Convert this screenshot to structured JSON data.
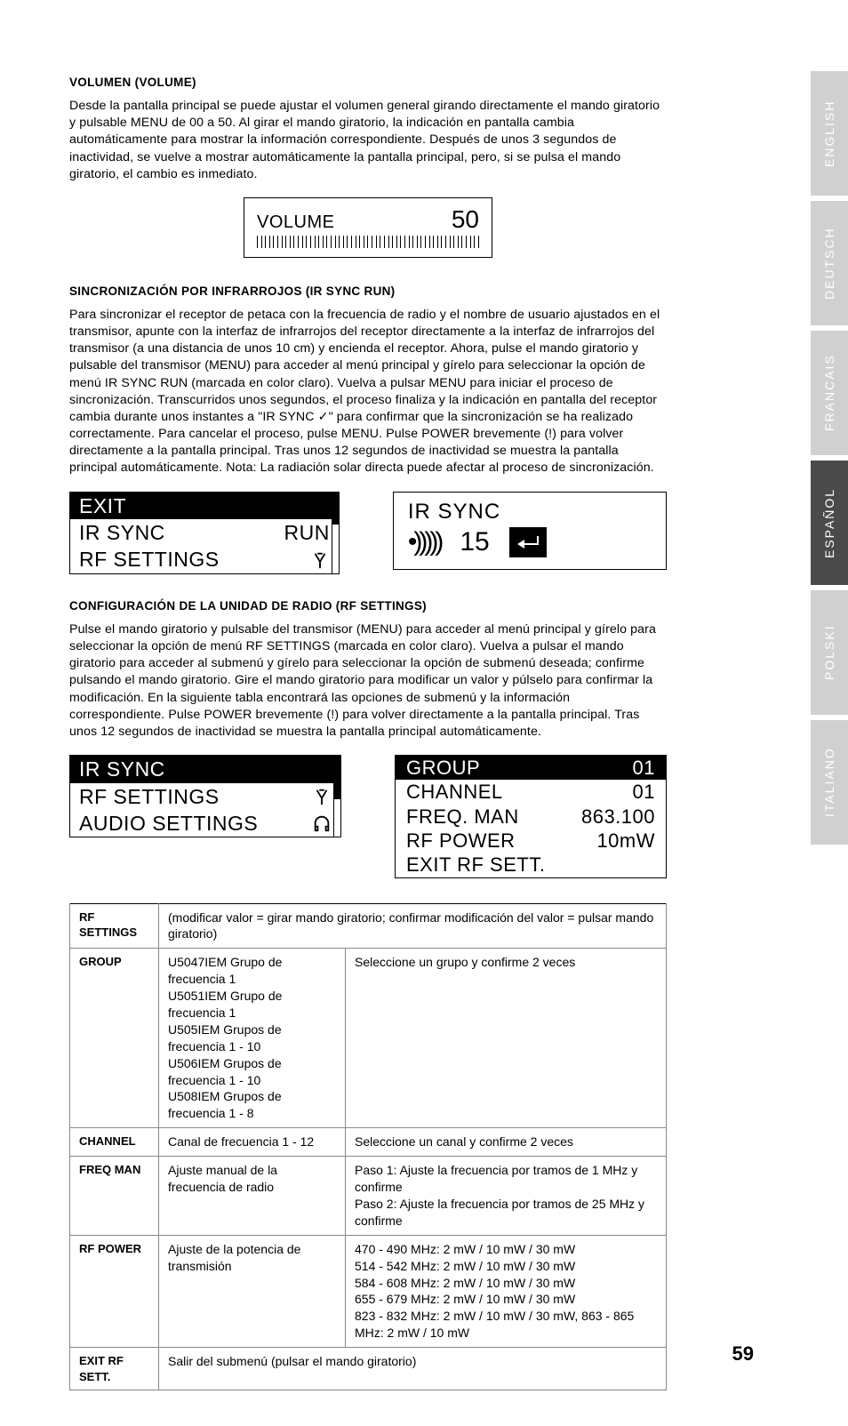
{
  "page_number": "59",
  "sections": {
    "volume": {
      "heading": "VOLUMEN (VOLUME)",
      "text": "Desde la pantalla principal se puede ajustar el volumen general girando directamente el mando giratorio y pulsable MENU de 00 a 50. Al girar el mando giratorio, la indicación en pantalla cambia automáticamente para mostrar la información correspondiente. Después de unos 3 segundos de inactividad, se vuelve a mostrar automáticamente la pantalla principal, pero, si se pulsa el mando giratorio, el cambio es inmediato."
    },
    "irsync": {
      "heading": "SINCRONIZACIÓN POR INFRARROJOS (IR SYNC RUN)",
      "text": "Para sincronizar el receptor de petaca con la frecuencia de radio y el nombre de usuario ajustados en el transmisor, apunte con la interfaz de infrarrojos del receptor directamente a la interfaz de infrarrojos del transmisor (a una distancia de unos 10 cm) y encienda el receptor. Ahora, pulse el mando giratorio y pulsable del transmisor (MENU) para acceder al menú principal y gírelo para seleccionar la opción de menú IR SYNC RUN (marcada en color claro). Vuelva a pulsar MENU para iniciar el proceso de sincronización. Transcurridos unos segundos, el proceso finaliza y la indicación en pantalla del receptor cambia durante unos instantes a \"IR SYNC ✓\" para confirmar que la sincronización se ha realizado correctamente. Para cancelar el proceso, pulse MENU. Pulse POWER brevemente (!) para volver directamente a la pantalla principal. Tras unos 12 segundos de inactividad se muestra la pantalla principal automáticamente. Nota: La radiación solar directa puede afectar al proceso de sincronización."
    },
    "rfsettings": {
      "heading": "CONFIGURACIÓN DE LA UNIDAD DE RADIO (RF SETTINGS)",
      "text": "Pulse el mando giratorio y pulsable del transmisor (MENU) para acceder al menú principal y gírelo para seleccionar la opción de menú RF SETTINGS (marcada en color claro). Vuelva a pulsar el mando giratorio para acceder al submenú y gírelo para seleccionar la opción de submenú deseada; confirme pulsando el mando giratorio. Gire el mando giratorio para modificar un valor y púlselo para confirmar la modificación. En la siguiente tabla encontrará las opciones de submenú y la información correspondiente. Pulse POWER brevemente (!) para volver directamente a la pantalla principal. Tras unos 12 segundos de inactividad se muestra la pantalla principal automáticamente."
    }
  },
  "lcd": {
    "volume": {
      "label": "VOLUME",
      "value": "50"
    },
    "menu1": {
      "items": [
        "EXIT",
        "IR SYNC",
        "RF SETTINGS"
      ],
      "run_label": "RUN",
      "thumb_top": "0%",
      "thumb_height": "40%"
    },
    "sync": {
      "title": "IR SYNC",
      "count": "15"
    },
    "menu2": {
      "items": [
        "IR SYNC",
        "RF SETTINGS",
        "AUDIO SETTINGS"
      ],
      "thumb_top": "14%",
      "thumb_height": "40%"
    },
    "settings_panel": {
      "rows": [
        {
          "label": "GROUP",
          "value": "01",
          "inverted": true
        },
        {
          "label": "CHANNEL",
          "value": "01"
        },
        {
          "label": "FREQ. MAN",
          "value": "863.100"
        },
        {
          "label": "RF POWER",
          "value": "10mW"
        },
        {
          "label": "EXIT RF SETT.",
          "value": ""
        }
      ]
    }
  },
  "table": {
    "header": {
      "title": "RF SETTINGS",
      "note": "(modificar valor = girar mando giratorio; confirmar modificación del valor = pulsar mando giratorio)"
    },
    "rows": [
      {
        "label": "GROUP",
        "desc": "U5047IEM Grupo de frecuencia 1\nU5051IEM Grupo de frecuencia 1\nU505IEM Grupos de frecuencia 1 - 10\nU506IEM Grupos de frecuencia 1 - 10\nU508IEM Grupos de frecuencia 1 - 8",
        "action": "Seleccione un grupo y confirme 2 veces"
      },
      {
        "label": "CHANNEL",
        "desc": "Canal de frecuencia 1 - 12",
        "action": "Seleccione un canal y confirme 2 veces"
      },
      {
        "label": "FREQ MAN",
        "desc": "Ajuste manual de la frecuencia de radio",
        "action": "Paso 1: Ajuste la frecuencia por tramos de 1 MHz y confirme\nPaso 2: Ajuste la frecuencia por tramos de 25 MHz y confirme"
      },
      {
        "label": "RF POWER",
        "desc": "Ajuste de la potencia de transmisión",
        "action": "470 - 490 MHz: 2 mW / 10 mW / 30 mW\n514 - 542 MHz: 2 mW / 10 mW / 30 mW\n584 - 608 MHz: 2 mW / 10 mW / 30 mW\n655 - 679 MHz: 2 mW / 10 mW / 30 mW\n823 - 832 MHz: 2 mW / 10 mW / 30 mW, 863 - 865 MHz: 2 mW / 10 mW"
      },
      {
        "label": "EXIT RF SETT.",
        "desc": "Salir del submenú (pulsar el mando giratorio)",
        "action": ""
      }
    ]
  },
  "lang_tabs": [
    "ENGLISH",
    "DEUTSCH",
    "FRANCAIS",
    "ESPAÑOL",
    "POLSKI",
    "ITALIANO"
  ],
  "active_lang_index": 3
}
